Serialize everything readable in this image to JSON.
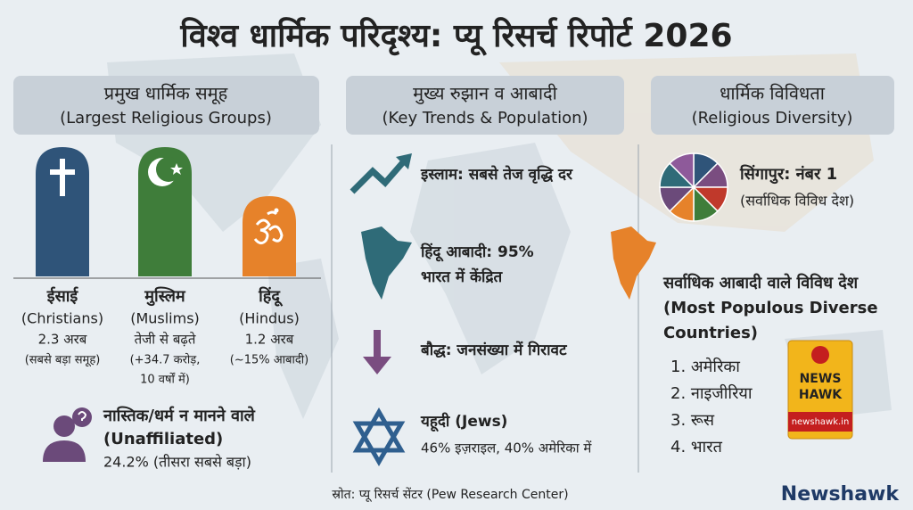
{
  "header": {
    "title": "विश्व धार्मिक परिदृश्य: प्यू रिसर्च रिपोर्ट 2026"
  },
  "columns": [
    {
      "heading": "प्रमुख धार्मिक समूह",
      "heading_en": "(Largest Religious Groups)"
    },
    {
      "heading": "मुख्य रुझान व आबादी",
      "heading_en": "(Key Trends & Population)"
    },
    {
      "heading": "धार्मिक विविधता",
      "heading_en": "(Religious Diversity)"
    }
  ],
  "groups": [
    {
      "name": "ईसाई",
      "name_en": "(Christians)",
      "stat": "2.3 अरब",
      "note": "(सबसे बड़ा समूह)"
    },
    {
      "name": "मुस्लिम",
      "name_en": "(Muslims)",
      "stat": "तेजी से बढ़ते",
      "note": "(+34.7 करोड़,",
      "note2": "10 वर्षों में)"
    },
    {
      "name": "हिंदू",
      "name_en": "(Hindus)",
      "stat": "1.2 अरब",
      "note": "(~15% आबादी)"
    }
  ],
  "unaffiliated": {
    "title": "नास्तिक/धर्म न मानने वाले",
    "title_en": "(Unaffiliated)",
    "stat": "24.2% (तीसरा सबसे बड़ा)"
  },
  "trends": [
    {
      "text": "इस्लाम: सबसे तेज वृद्धि दर"
    },
    {
      "text": "हिंदू आबादी: 95%",
      "text2": "भारत में केंद्रित"
    },
    {
      "text": "बौद्ध: जनसंख्या में गिरावट"
    },
    {
      "text": "यहूदी (Jews)",
      "text2": "46% इज़राइल, 40% अमेरिका में"
    }
  ],
  "diversity": {
    "top": "सिंगापुर: नंबर 1",
    "top_note": "(सर्वाधिक विविध देश)",
    "list_title": "सर्वाधिक आबादी वाले विविध देश",
    "list_title_en": "(Most Populous Diverse",
    "list_title_en2": "Countries)",
    "countries": [
      "1. अमेरिका",
      "2. नाइजीरिया",
      "3. रूस",
      "4. भारत"
    ]
  },
  "badge": {
    "line1": "NEWS",
    "line2": "HAWK",
    "site": "newshawk.in"
  },
  "source": "स्रोत: प्यू रिसर्च सेंटर (Pew Research Center)",
  "brand": "Newshawk"
}
